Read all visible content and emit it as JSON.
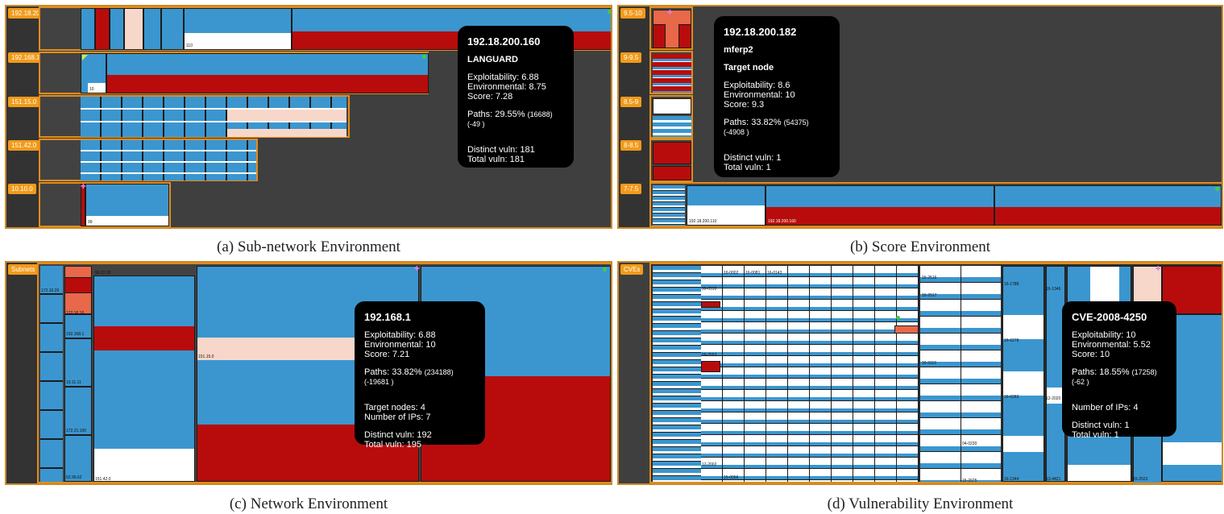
{
  "captions": {
    "a": "(a) Sub-network Environment",
    "b": "(b) Score Environment",
    "c": "(c) Network Environment",
    "d": "(d) Vulnerability Environment"
  },
  "panel_a": {
    "groups": [
      "192.18.200",
      "192.168.1",
      "151.15.0",
      "151.42.0",
      "10.10.0"
    ],
    "cell_labels": [
      "110",
      "99",
      "10"
    ],
    "tooltip": {
      "title": "192.18.200.160",
      "name": "LANGUARD",
      "exploitability": "Exploitability: 6.88",
      "environmental": "Environmental: 8.75",
      "score": "Score: 7.28",
      "paths_main": "Paths: 29.55%",
      "paths_detail": "(16688) (-49 )",
      "distinct": "Distinct vuln: 181",
      "total": "Total vuln: 181"
    }
  },
  "panel_b": {
    "groups": [
      "9.5-10",
      "9-9.5",
      "8.5-9",
      "8-8.5",
      "7-7.5"
    ],
    "cell_labels": [
      "192.18.200.110",
      "192.18.200.160"
    ],
    "tooltip": {
      "title": "192.18.200.182",
      "name": "mferp2",
      "role": "Target node",
      "exploitability": "Exploitability: 8.6",
      "environmental": "Environmental: 10",
      "score": "Score: 9.3",
      "paths_main": "Paths: 33.82%",
      "paths_detail": "(54375) (-4908 )",
      "distinct": "Distinct vuln: 1",
      "total": "Total vuln: 1"
    }
  },
  "panel_c": {
    "group": "Subnets",
    "cell_labels": [
      "172.16.20",
      "192.168.1",
      "10.11.11",
      "172.21.100",
      "62.99.62",
      "151.42.0",
      "151.15.0",
      "99.22.33",
      "172.16.16"
    ],
    "tooltip": {
      "title": "192.168.1",
      "exploitability": "Exploitability: 6.88",
      "environmental": "Environmental: 10",
      "score": "Score: 7.21",
      "paths_main": "Paths: 33.82%",
      "paths_detail": "(234188) (-19681 )",
      "target_nodes": "Target nodes: 4",
      "num_ips": "Number of IPs: 7",
      "distinct": "Distinct vuln: 192",
      "total": "Total vuln: 195"
    }
  },
  "panel_d": {
    "group": "CVEs",
    "cell_labels": [
      "15-0066",
      "16-0002",
      "16-0081",
      "16-0143",
      "15-2516",
      "15-2517",
      "16-1788",
      "16-1346",
      "12-2020",
      "13-4421",
      "16-3116",
      "16-1344",
      "15-2075",
      "99-0510",
      "09-2552",
      "12-2002",
      "15-2523",
      "16-6278",
      "16-6282",
      "04-0230"
    ],
    "tooltip": {
      "title": "CVE-2008-4250",
      "exploitability": "Exploitability: 10",
      "environmental": "Environmental: 5.52",
      "score": "Score: 10",
      "paths_main": "Paths: 18.55%",
      "paths_detail": "(17258) (-62 )",
      "num_ips": "Number of IPs: 4",
      "distinct": "Distinct vuln: 1",
      "total": "Total vuln: 1"
    }
  }
}
